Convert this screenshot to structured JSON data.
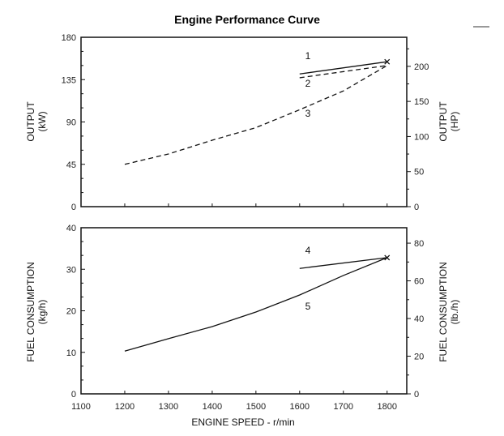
{
  "chart_data": [
    {
      "type": "line",
      "title": "Engine Performance Curve",
      "xlabel": "",
      "ylabel": "OUTPUT\n(kW)",
      "ylabel_right": "OUTPUT\n(HP)",
      "xlim": [
        1100,
        1845
      ],
      "ylim": [
        0,
        180
      ],
      "ylim_right": [
        0,
        241.4
      ],
      "yticks": [
        0,
        45,
        90,
        135,
        180
      ],
      "yticks_right": [
        0,
        50,
        100,
        150,
        200
      ],
      "grid": false,
      "series": [
        {
          "label": "1",
          "style": "solid",
          "x": [
            1600,
            1800
          ],
          "y": [
            141,
            154
          ]
        },
        {
          "label": "2",
          "style": "dashed",
          "x": [
            1600,
            1800
          ],
          "y": [
            137,
            150
          ]
        },
        {
          "label": "3",
          "style": "dashed",
          "x": [
            1200,
            1300,
            1400,
            1500,
            1600,
            1700,
            1800
          ],
          "y": [
            45,
            56,
            70.6,
            84,
            103,
            123,
            150
          ]
        }
      ],
      "marker": {
        "x": 1800,
        "y": 154,
        "symbol": "x"
      }
    },
    {
      "type": "line",
      "xlabel": "ENGINE SPEED - r/min",
      "ylabel": "FUEL CONSUMPTION\n(kg/h)",
      "ylabel_right": "FUEL CONSUMPTION\n(lb./h)",
      "xlim": [
        1100,
        1845
      ],
      "ylim": [
        0,
        40
      ],
      "ylim_right": [
        0,
        88.2
      ],
      "xticks": [
        1100,
        1200,
        1300,
        1400,
        1500,
        1600,
        1700,
        1800
      ],
      "yticks": [
        0,
        10,
        20,
        30,
        40
      ],
      "yticks_right": [
        0,
        20,
        40,
        60,
        80
      ],
      "grid": false,
      "series": [
        {
          "label": "4",
          "style": "solid",
          "x": [
            1600,
            1800
          ],
          "y": [
            30.2,
            32.8
          ]
        },
        {
          "label": "5",
          "style": "solid",
          "x": [
            1200,
            1300,
            1400,
            1500,
            1600,
            1700,
            1800
          ],
          "y": [
            10.3,
            13.3,
            16.2,
            19.7,
            23.8,
            28.5,
            32.8
          ]
        }
      ],
      "marker": {
        "x": 1800,
        "y": 32.8,
        "symbol": "x"
      }
    }
  ]
}
